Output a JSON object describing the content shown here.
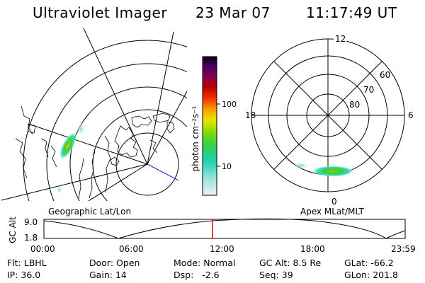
{
  "header": {
    "instrument": "Ultraviolet Imager",
    "date": "23 Mar 07",
    "time": "11:17:49 UT"
  },
  "colorbar": {
    "unit_label": "photon cm⁻²s⁻¹",
    "ticks": [
      "100",
      "10"
    ]
  },
  "geo_panel": {
    "label": "Geographic Lat/Lon"
  },
  "apex_panel": {
    "label": "Apex MLat/MLT",
    "mlt_labels": [
      "12",
      "18",
      "6",
      "0"
    ],
    "lat_labels": [
      "60",
      "70",
      "80"
    ]
  },
  "timeline": {
    "ylabel": "GC Alt",
    "y_ticks": [
      "9.0",
      "1.8"
    ],
    "x_ticks": [
      "00:00",
      "06:00",
      "12:00",
      "18:00",
      "23:59"
    ],
    "marker_color": "#e00000"
  },
  "status": [
    [
      {
        "label": "Flt:",
        "value": "LBHL"
      },
      {
        "label": "IP:",
        "value": "36.0"
      }
    ],
    [
      {
        "label": "Door:",
        "value": "Open"
      },
      {
        "label": "Gain:",
        "value": "14"
      }
    ],
    [
      {
        "label": "Mode:",
        "value": "Normal"
      },
      {
        "label": "Dsp:",
        "value": "  -2.6"
      }
    ],
    [
      {
        "label": "GC Alt:",
        "value": "8.5 Re"
      },
      {
        "label": "Seq:",
        "value": "39"
      }
    ],
    [
      {
        "label": "GLat:",
        "value": "-66.2"
      },
      {
        "label": "GLon:",
        "value": "201.8"
      }
    ]
  ]
}
